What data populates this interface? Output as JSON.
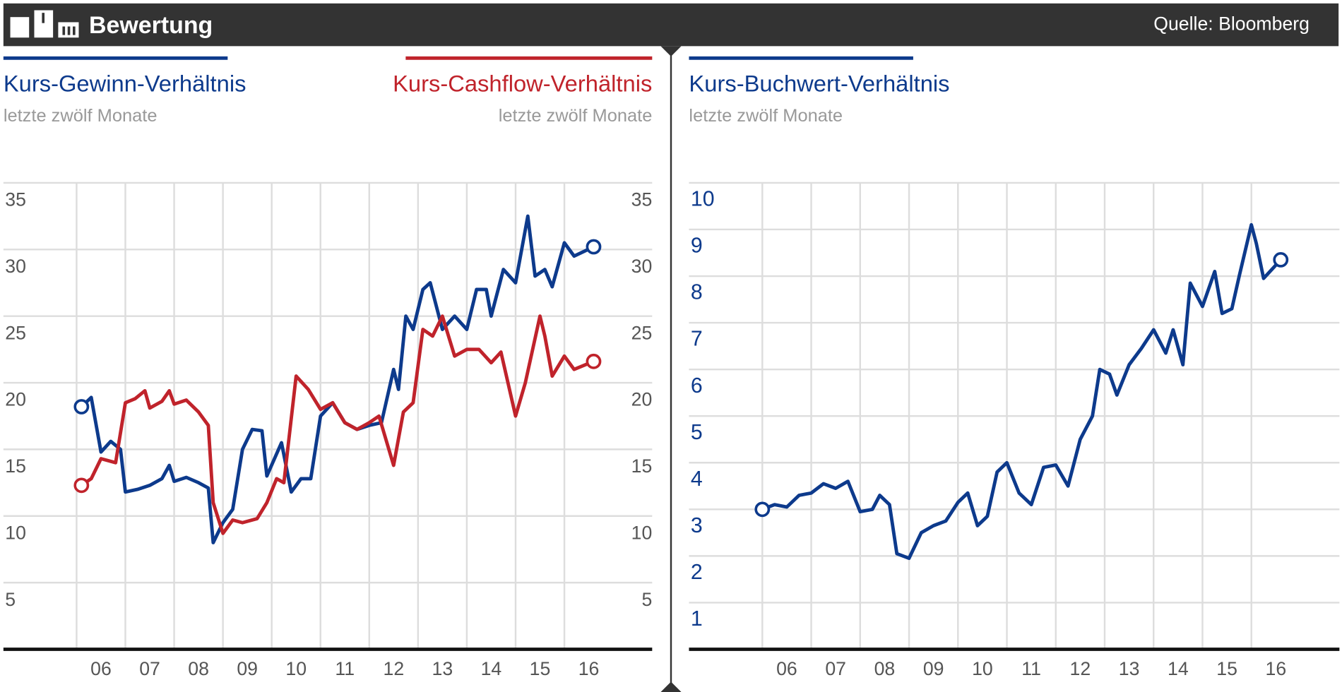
{
  "header": {
    "title": "Bewertung",
    "source": "Quelle: Bloomberg"
  },
  "chart_data": [
    {
      "type": "line",
      "xlim": [
        4.5,
        17.8
      ],
      "ylim": [
        0,
        35
      ],
      "yticks": [
        5,
        10,
        15,
        20,
        25,
        30,
        35
      ],
      "ytick_sides": [
        "left",
        "right"
      ],
      "grid": true,
      "xticks": [
        {
          "value": 6,
          "label": "06"
        },
        {
          "value": 7,
          "label": "07"
        },
        {
          "value": 8,
          "label": "08"
        },
        {
          "value": 9,
          "label": "09"
        },
        {
          "value": 10,
          "label": "10"
        },
        {
          "value": 11,
          "label": "11"
        },
        {
          "value": 12,
          "label": "12"
        },
        {
          "value": 13,
          "label": "13"
        },
        {
          "value": 14,
          "label": "14"
        },
        {
          "value": 15,
          "label": "15"
        },
        {
          "value": 16,
          "label": "16"
        }
      ],
      "series": [
        {
          "name": "Kurs-Gewinn-Verhältnis",
          "subtitle": "letzte zwölf Monate",
          "color": "#0d3a8c",
          "x": [
            6.1,
            6.3,
            6.5,
            6.7,
            6.9,
            7.0,
            7.25,
            7.5,
            7.75,
            7.9,
            8.0,
            8.25,
            8.5,
            8.7,
            8.8,
            9.0,
            9.2,
            9.4,
            9.6,
            9.8,
            9.9,
            10.2,
            10.4,
            10.6,
            10.8,
            11.0,
            11.25,
            11.5,
            11.75,
            12.0,
            12.25,
            12.5,
            12.6,
            12.75,
            12.9,
            13.1,
            13.25,
            13.5,
            13.75,
            14.0,
            14.2,
            14.4,
            14.5,
            14.75,
            15.0,
            15.25,
            15.4,
            15.6,
            15.75,
            16.0,
            16.2,
            16.6
          ],
          "values": [
            18.2,
            18.9,
            14.8,
            15.6,
            15,
            11.8,
            12,
            12.3,
            12.8,
            13.8,
            12.6,
            12.9,
            12.5,
            12.1,
            8,
            9.5,
            10.5,
            15,
            16.5,
            16.4,
            13,
            15.5,
            11.8,
            12.8,
            12.8,
            17.5,
            18.5,
            17,
            16.5,
            16.8,
            17,
            21,
            19.5,
            25,
            24,
            27,
            27.5,
            24,
            25,
            24,
            27,
            27,
            25,
            28.5,
            27.5,
            32.5,
            28,
            28.5,
            27.2,
            30.5,
            29.5,
            30.2
          ]
        },
        {
          "name": "Kurs-Cashflow-Verhältnis",
          "subtitle": "letzte zwölf Monate",
          "color": "#c0232b",
          "x": [
            6.1,
            6.3,
            6.5,
            6.8,
            7.0,
            7.2,
            7.4,
            7.5,
            7.75,
            7.9,
            8.0,
            8.25,
            8.5,
            8.7,
            8.8,
            9.0,
            9.2,
            9.4,
            9.7,
            9.9,
            10.1,
            10.25,
            10.5,
            10.75,
            11.0,
            11.25,
            11.5,
            11.75,
            12.0,
            12.2,
            12.5,
            12.7,
            12.9,
            13.1,
            13.3,
            13.5,
            13.75,
            14.0,
            14.25,
            14.5,
            14.7,
            15.0,
            15.2,
            15.5,
            15.6,
            15.75,
            16.0,
            16.2,
            16.6
          ],
          "values": [
            12.3,
            12.8,
            14.3,
            14,
            18.5,
            18.8,
            19.4,
            18.1,
            18.6,
            19.4,
            18.4,
            18.7,
            17.8,
            16.8,
            11,
            8.7,
            9.7,
            9.5,
            9.8,
            11,
            12.8,
            12.5,
            20.5,
            19.5,
            18,
            18.5,
            17,
            16.5,
            17,
            17.5,
            13.8,
            17.8,
            18.5,
            24,
            23.5,
            25,
            22,
            22.5,
            22.5,
            21.5,
            22.3,
            17.5,
            20,
            25,
            23.5,
            20.5,
            22,
            21,
            21.6
          ]
        }
      ]
    },
    {
      "type": "line",
      "xlim": [
        4.5,
        17.8
      ],
      "ylim": [
        0,
        10
      ],
      "yticks": [
        1,
        2,
        3,
        4,
        5,
        6,
        7,
        8,
        9,
        10
      ],
      "ytick_sides": [
        "left"
      ],
      "grid": true,
      "xticks": [
        {
          "value": 6,
          "label": "06"
        },
        {
          "value": 7,
          "label": "07"
        },
        {
          "value": 8,
          "label": "08"
        },
        {
          "value": 9,
          "label": "09"
        },
        {
          "value": 10,
          "label": "10"
        },
        {
          "value": 11,
          "label": "11"
        },
        {
          "value": 12,
          "label": "12"
        },
        {
          "value": 13,
          "label": "13"
        },
        {
          "value": 14,
          "label": "14"
        },
        {
          "value": 15,
          "label": "15"
        },
        {
          "value": 16,
          "label": "16"
        }
      ],
      "series": [
        {
          "name": "Kurs-Buchwert-Verhältnis",
          "subtitle": "letzte zwölf Monate",
          "color": "#0d3a8c",
          "x": [
            6.0,
            6.25,
            6.5,
            6.75,
            7.0,
            7.25,
            7.5,
            7.75,
            8.0,
            8.25,
            8.4,
            8.6,
            8.75,
            9.0,
            9.25,
            9.5,
            9.75,
            10.0,
            10.2,
            10.4,
            10.6,
            10.8,
            11.0,
            11.25,
            11.5,
            11.75,
            12.0,
            12.25,
            12.5,
            12.75,
            12.9,
            13.1,
            13.25,
            13.5,
            13.75,
            14.0,
            14.25,
            14.4,
            14.6,
            14.75,
            15.0,
            15.25,
            15.4,
            15.6,
            15.75,
            16.0,
            16.1,
            16.25,
            16.6
          ],
          "values": [
            3.0,
            3.1,
            3.05,
            3.3,
            3.35,
            3.55,
            3.45,
            3.6,
            2.95,
            3.0,
            3.3,
            3.1,
            2.05,
            1.95,
            2.5,
            2.65,
            2.75,
            3.15,
            3.35,
            2.65,
            2.85,
            3.8,
            4.0,
            3.35,
            3.1,
            3.9,
            3.95,
            3.5,
            4.5,
            5.0,
            6.0,
            5.9,
            5.45,
            6.1,
            6.45,
            6.85,
            6.35,
            6.85,
            6.1,
            7.85,
            7.35,
            8.1,
            7.2,
            7.3,
            8.0,
            9.1,
            8.7,
            7.95,
            8.35
          ]
        }
      ]
    }
  ]
}
